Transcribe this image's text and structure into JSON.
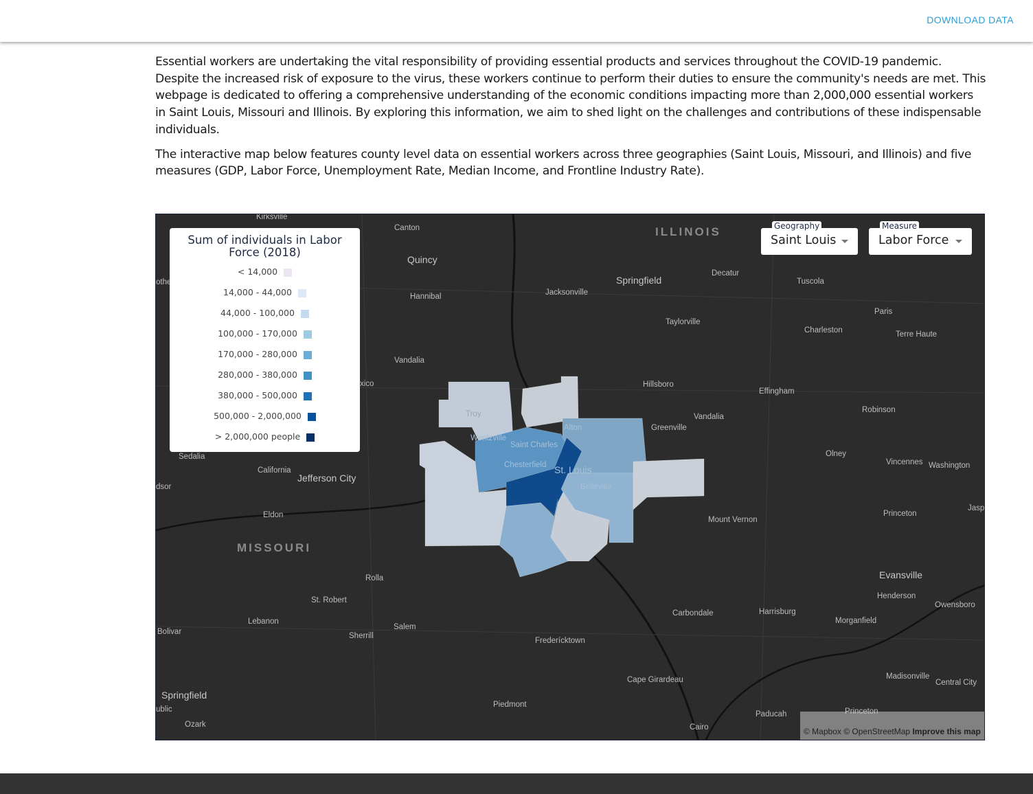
{
  "header": {
    "download_label": "DOWNLOAD DATA"
  },
  "intro": {
    "paragraphs": [
      "Essential workers are undertaking the vital responsibility of providing essential products and services throughout the COVID-19 pandemic. Despite the increased risk of exposure to the virus, these workers continue to perform their duties to ensure the community's needs are met. This webpage is dedicated to offering a comprehensive understanding of the economic conditions impacting more than 2,000,000 essential workers in Saint Louis, Missouri and Illinois. By exploring this information, we aim to shed light on the challenges and contributions of these indispensable individuals.",
      "The interactive map below features county level data on essential workers across three geographies (Saint Louis, Missouri, and Illinois) and five measures (GDP, Labor Force, Unemployment Rate, Median Income, and Frontline Industry Rate)."
    ]
  },
  "map": {
    "legend": {
      "title": "Sum of individuals in Labor Force (2018)",
      "items": [
        {
          "label": "< 14,000",
          "color": "#ebe5f1"
        },
        {
          "label": "14,000 - 44,000",
          "color": "#dce8f5"
        },
        {
          "label": "44,000 - 100,000",
          "color": "#c5daee"
        },
        {
          "label": "100,000 - 170,000",
          "color": "#9ecae1"
        },
        {
          "label": "170,000 - 280,000",
          "color": "#6baed6"
        },
        {
          "label": "280,000 - 380,000",
          "color": "#4292c6"
        },
        {
          "label": "380,000 - 500,000",
          "color": "#2171b5"
        },
        {
          "label": "500,000 - 2,000,000",
          "color": "#08519c"
        },
        {
          "label": "> 2,000,000 people",
          "color": "#08306b"
        }
      ]
    },
    "geography": {
      "caption": "Geography",
      "value": "Saint Louis"
    },
    "measure": {
      "caption": "Measure",
      "value": "Labor Force"
    },
    "labels": [
      "ILLINOIS",
      "MISSOURI",
      "Kirksville",
      "Canton",
      "Quincy",
      "Hannibal",
      "Jacksonville",
      "Springfield",
      "Decatur",
      "Tuscola",
      "Paris",
      "Charleston",
      "Terre Haute",
      "Taylorville",
      "Vandalia",
      "Hillsboro",
      "Effingham",
      "Robinson",
      "Vandalia",
      "Greenville",
      "Olney",
      "Vincennes",
      "Washington",
      "Princeton",
      "Jasp",
      "Mount Vernon",
      "Evansville",
      "Henderson",
      "Owensboro",
      "Carbondale",
      "Harrisburg",
      "Morganfield",
      "Frederícktown",
      "Cape Girardeau",
      "Madisonville",
      "Central City",
      "Paducah",
      "Princeton",
      "Cairo",
      "Piedmont",
      "Sedalia",
      "California",
      "Jefferson City",
      "Eldon",
      "Rolla",
      "St. Robert",
      "Lebanon",
      "Salem",
      "Sherrill",
      "Bolivar",
      "Springfield",
      "Ozark",
      "Troy",
      "Saint Charles",
      "St. Louis",
      "Belleville",
      "Alton",
      "Chesterfield",
      "Wentzville",
      "xico",
      "othe",
      "dsor",
      "ublic"
    ],
    "attribution": {
      "mapbox": "© Mapbox",
      "osm": "© OpenStreetMap",
      "improve": "Improve this map"
    }
  }
}
